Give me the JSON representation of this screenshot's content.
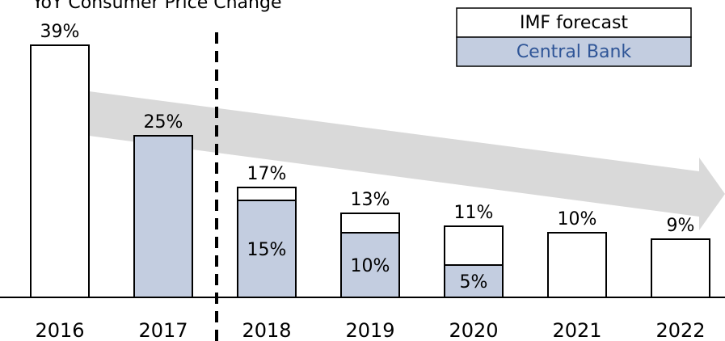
{
  "chart_data": {
    "type": "bar",
    "title": "YoY Consumer Price Change",
    "categories": [
      "2016",
      "2017",
      "2018",
      "2019",
      "2020",
      "2021",
      "2022"
    ],
    "series": [
      {
        "name": "IMF forecast",
        "color": "#ffffff",
        "values": [
          39,
          null,
          17,
          13,
          11,
          10,
          9
        ],
        "value_labels": [
          "39%",
          null,
          "17%",
          "13%",
          "11%",
          "10%",
          "9%"
        ]
      },
      {
        "name": "Central Bank",
        "color": "#c3cde0",
        "values": [
          null,
          25,
          15,
          10,
          5,
          null,
          null
        ],
        "value_labels": [
          null,
          "25%",
          "15%",
          "10%",
          "5%",
          null,
          null
        ]
      }
    ]
  }
}
